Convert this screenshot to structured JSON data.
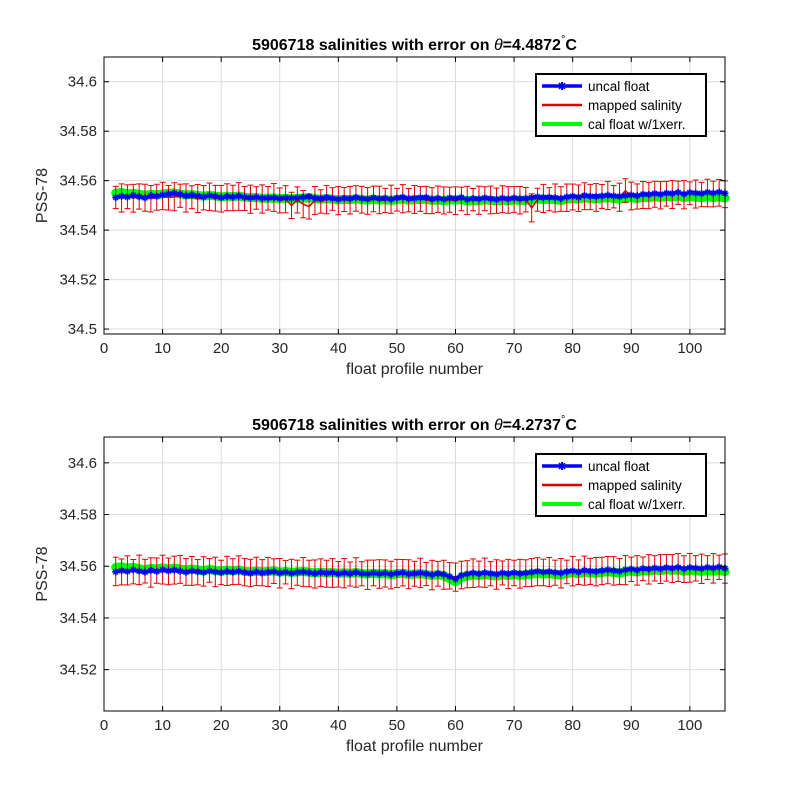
{
  "figure": {
    "background": "#ffffff"
  },
  "colors": {
    "uncal": "#0000ff",
    "mapped": "#e00000",
    "cal": "#00ff00",
    "grid": "#dcdcdc",
    "axes": "#000000"
  },
  "chart_data": [
    {
      "type": "line",
      "title_prefix": "5906718 salinities with error on ",
      "title_symbol": "θ",
      "title_value": "=4.4872",
      "title_degree": "°",
      "title_unit": "C",
      "xlabel": "float profile number",
      "ylabel": "PSS-78",
      "xlim": [
        0,
        106
      ],
      "ylim": [
        34.498,
        34.61
      ],
      "xticks": [
        0,
        10,
        20,
        30,
        40,
        50,
        60,
        70,
        80,
        90,
        100
      ],
      "yticks": [
        34.5,
        34.52,
        34.54,
        34.56,
        34.58,
        34.6
      ],
      "ytick_labels": [
        "34.5",
        "34.52",
        "34.54",
        "34.56",
        "34.58",
        "34.6"
      ],
      "grid": true,
      "legend_position": "top-right",
      "x": [
        2,
        3,
        4,
        5,
        6,
        7,
        8,
        9,
        10,
        11,
        12,
        13,
        14,
        15,
        16,
        17,
        18,
        19,
        20,
        21,
        22,
        23,
        24,
        25,
        26,
        27,
        28,
        29,
        30,
        31,
        32,
        33,
        34,
        35,
        36,
        37,
        38,
        39,
        40,
        41,
        42,
        43,
        44,
        45,
        46,
        47,
        48,
        49,
        50,
        51,
        52,
        53,
        54,
        55,
        56,
        57,
        58,
        59,
        60,
        61,
        62,
        63,
        64,
        65,
        66,
        67,
        68,
        69,
        70,
        71,
        72,
        73,
        74,
        75,
        76,
        77,
        78,
        79,
        80,
        81,
        82,
        83,
        84,
        85,
        86,
        87,
        88,
        89,
        90,
        91,
        92,
        93,
        94,
        95,
        96,
        97,
        98,
        99,
        100,
        101,
        102,
        103,
        104,
        105,
        106
      ],
      "series": [
        {
          "name": "uncal float",
          "color": "#0000ff",
          "values": [
            34.5532,
            34.5537,
            34.5534,
            34.5541,
            34.5535,
            34.553,
            34.554,
            34.5537,
            34.5542,
            34.5546,
            34.5549,
            34.5545,
            34.5539,
            34.5542,
            34.5538,
            34.5535,
            34.554,
            34.5537,
            34.5532,
            34.5536,
            34.5534,
            34.5538,
            34.5533,
            34.5531,
            34.5533,
            34.5529,
            34.553,
            34.5531,
            34.5528,
            34.5531,
            34.5529,
            34.553,
            34.5533,
            34.5535,
            34.553,
            34.5528,
            34.5532,
            34.5528,
            34.5525,
            34.5529,
            34.5527,
            34.5532,
            34.5528,
            34.5526,
            34.5531,
            34.5527,
            34.5529,
            34.5525,
            34.553,
            34.5533,
            34.5527,
            34.5529,
            34.5531,
            34.5532,
            34.5526,
            34.5529,
            34.5525,
            34.553,
            34.5528,
            34.5532,
            34.5524,
            34.5528,
            34.5526,
            34.553,
            34.5527,
            34.5524,
            34.5529,
            34.5526,
            34.553,
            34.5527,
            34.5528,
            34.5531,
            34.5534,
            34.5532,
            34.5533,
            34.5531,
            34.5528,
            34.5534,
            34.5537,
            34.5533,
            34.554,
            34.5537,
            34.5536,
            34.5538,
            34.5541,
            34.5538,
            34.5536,
            34.554,
            34.5542,
            34.5539,
            34.5545,
            34.5544,
            34.5548,
            34.5545,
            34.555,
            34.5548,
            34.5553,
            34.5546,
            34.5552,
            34.555,
            34.5548,
            34.5553,
            34.555,
            34.5554,
            34.5549
          ]
        },
        {
          "name": "mapped salinity",
          "color": "#e00000",
          "values": [
            34.5532,
            34.553,
            34.5535,
            34.5529,
            34.5536,
            34.5531,
            34.5527,
            34.5533,
            34.5538,
            34.5531,
            34.5535,
            34.5539,
            34.553,
            34.5533,
            34.5528,
            34.5531,
            34.5535,
            34.5529,
            34.5527,
            34.5533,
            34.553,
            34.5536,
            34.5528,
            34.5525,
            34.553,
            34.5526,
            34.5529,
            34.5532,
            34.552,
            34.5525,
            34.55,
            34.5522,
            34.5505,
            34.5495,
            34.552,
            34.5516,
            34.5523,
            34.5526,
            34.5519,
            34.5524,
            34.5521,
            34.5528,
            34.5523,
            34.5518,
            34.5526,
            34.5522,
            34.552,
            34.5525,
            34.5523,
            34.5527,
            34.5521,
            34.5524,
            34.5526,
            34.5522,
            34.5519,
            34.5525,
            34.552,
            34.5523,
            34.5519,
            34.5526,
            34.552,
            34.5523,
            34.5521,
            34.5527,
            34.5522,
            34.5519,
            34.5525,
            34.5522,
            34.5524,
            34.5521,
            34.5523,
            34.549,
            34.5523,
            34.5528,
            34.5525,
            34.553,
            34.5526,
            34.5531,
            34.5534,
            34.5529,
            34.5537,
            34.5534,
            34.5532,
            34.5536,
            34.554,
            34.5535,
            34.5533,
            34.556,
            34.5538,
            34.5536,
            34.5542,
            34.554,
            34.5545,
            34.5541,
            34.5547,
            34.5544,
            34.5551,
            34.5543,
            34.5549,
            34.5546,
            34.5544,
            34.555,
            34.5546,
            34.5551,
            34.5545
          ]
        },
        {
          "name": "cal float w/1xerr.",
          "color": "#00ff00",
          "values": [
            34.555,
            34.5552,
            34.5546,
            34.5549,
            34.5544,
            34.5541,
            34.5545,
            34.5543,
            34.5547,
            34.5549,
            34.555,
            34.5546,
            34.5542,
            34.5544,
            34.554,
            34.5537,
            34.5541,
            34.5538,
            34.5534,
            34.5537,
            34.5535,
            34.5538,
            34.5533,
            34.5531,
            34.5532,
            34.5528,
            34.5529,
            34.553,
            34.5527,
            34.5529,
            34.5527,
            34.5528,
            34.553,
            34.5531,
            34.5527,
            34.5525,
            34.5528,
            34.5525,
            34.5522,
            34.5525,
            34.5523,
            34.5527,
            34.5523,
            34.5521,
            34.5525,
            34.5522,
            34.5523,
            34.552,
            34.5524,
            34.5526,
            34.5521,
            34.5523,
            34.5524,
            34.5525,
            34.552,
            34.5522,
            34.5519,
            34.5523,
            34.5521,
            34.5524,
            34.5518,
            34.5521,
            34.5519,
            34.5523,
            34.552,
            34.5518,
            34.5522,
            34.5519,
            34.5522,
            34.552,
            34.5521,
            34.5523,
            34.5526,
            34.5524,
            34.5525,
            34.5523,
            34.552,
            34.5526,
            34.5528,
            34.5525,
            34.5531,
            34.5528,
            34.5527,
            34.5529,
            34.5531,
            34.5528,
            34.5526,
            34.553,
            34.5531,
            34.5528,
            34.5533,
            34.5532,
            34.5535,
            34.5532,
            34.5536,
            34.5534,
            34.5538,
            34.5532,
            34.5536,
            34.5534,
            34.5531,
            34.5535,
            34.5532,
            34.5535,
            34.553
          ]
        }
      ]
    },
    {
      "type": "line",
      "title_prefix": "5906718 salinities with error on ",
      "title_symbol": "θ",
      "title_value": "=4.2737",
      "title_degree": "°",
      "title_unit": "C",
      "xlabel": "float profile number",
      "ylabel": "PSS-78",
      "xlim": [
        0,
        106
      ],
      "ylim": [
        34.504,
        34.61
      ],
      "xticks": [
        0,
        10,
        20,
        30,
        40,
        50,
        60,
        70,
        80,
        90,
        100
      ],
      "yticks": [
        34.52,
        34.54,
        34.56,
        34.58,
        34.6
      ],
      "ytick_labels": [
        "34.52",
        "34.54",
        "34.56",
        "34.58",
        "34.6"
      ],
      "grid": true,
      "legend_position": "top-right",
      "x": [
        2,
        3,
        4,
        5,
        6,
        7,
        8,
        9,
        10,
        11,
        12,
        13,
        14,
        15,
        16,
        17,
        18,
        19,
        20,
        21,
        22,
        23,
        24,
        25,
        26,
        27,
        28,
        29,
        30,
        31,
        32,
        33,
        34,
        35,
        36,
        37,
        38,
        39,
        40,
        41,
        42,
        43,
        44,
        45,
        46,
        47,
        48,
        49,
        50,
        51,
        52,
        53,
        54,
        55,
        56,
        57,
        58,
        59,
        60,
        61,
        62,
        63,
        64,
        65,
        66,
        67,
        68,
        69,
        70,
        71,
        72,
        73,
        74,
        75,
        76,
        77,
        78,
        79,
        80,
        81,
        82,
        83,
        84,
        85,
        86,
        87,
        88,
        89,
        90,
        91,
        92,
        93,
        94,
        95,
        96,
        97,
        98,
        99,
        100,
        101,
        102,
        103,
        104,
        105,
        106
      ],
      "series": [
        {
          "name": "uncal float",
          "color": "#0000ff",
          "values": [
            34.5578,
            34.5583,
            34.558,
            34.5586,
            34.5581,
            34.5577,
            34.5584,
            34.558,
            34.5586,
            34.5582,
            34.5585,
            34.5581,
            34.5577,
            34.5582,
            34.5579,
            34.5576,
            34.5582,
            34.5578,
            34.5575,
            34.558,
            34.5577,
            34.5581,
            34.5576,
            34.5573,
            34.5578,
            34.5574,
            34.5577,
            34.5579,
            34.5574,
            34.5577,
            34.5573,
            34.5576,
            34.5578,
            34.5575,
            34.5572,
            34.5576,
            34.5573,
            34.5575,
            34.5571,
            34.5574,
            34.5572,
            34.5576,
            34.5572,
            34.557,
            34.5574,
            34.5571,
            34.5573,
            34.5569,
            34.5573,
            34.5575,
            34.557,
            34.5572,
            34.5574,
            34.5571,
            34.5567,
            34.5572,
            34.5568,
            34.556,
            34.555,
            34.5565,
            34.557,
            34.5574,
            34.5571,
            34.5575,
            34.5572,
            34.5569,
            34.5574,
            34.5571,
            34.5575,
            34.5572,
            34.5574,
            34.5577,
            34.558,
            34.5577,
            34.5579,
            34.5576,
            34.5574,
            34.5579,
            34.5582,
            34.5578,
            34.5584,
            34.5581,
            34.558,
            34.5583,
            34.5586,
            34.5583,
            34.5581,
            34.5586,
            34.5589,
            34.5585,
            34.5591,
            34.5589,
            34.5593,
            34.559,
            34.5595,
            34.5592,
            34.5596,
            34.559,
            34.5595,
            34.5593,
            34.5591,
            34.5596,
            34.5593,
            34.5597,
            34.5592
          ]
        },
        {
          "name": "mapped salinity",
          "color": "#e00000",
          "values": [
            34.558,
            34.5578,
            34.5584,
            34.5579,
            34.5586,
            34.5581,
            34.5576,
            34.5583,
            34.5587,
            34.558,
            34.5585,
            34.5588,
            34.5578,
            34.5582,
            34.5577,
            34.558,
            34.5584,
            34.5578,
            34.5576,
            34.5582,
            34.5579,
            34.5585,
            34.5577,
            34.5574,
            34.558,
            34.5575,
            34.5578,
            34.5581,
            34.5573,
            34.5577,
            34.557,
            34.5575,
            34.5578,
            34.5572,
            34.557,
            34.5575,
            34.5571,
            34.5574,
            34.5569,
            34.5573,
            34.557,
            34.5576,
            34.5571,
            34.5567,
            34.5574,
            34.557,
            34.5572,
            34.5566,
            34.5572,
            34.5575,
            34.5569,
            34.5571,
            34.5574,
            34.557,
            34.5566,
            34.5571,
            34.5567,
            34.5563,
            34.5558,
            34.5566,
            34.5569,
            34.5573,
            34.557,
            34.5575,
            34.5571,
            34.5568,
            34.5574,
            34.557,
            34.5574,
            34.5571,
            34.5573,
            34.5576,
            34.5579,
            34.5576,
            34.5578,
            34.5575,
            34.5573,
            34.5578,
            34.5581,
            34.5577,
            34.5583,
            34.558,
            34.5579,
            34.5582,
            34.5585,
            34.5582,
            34.558,
            34.5585,
            34.5588,
            34.5584,
            34.559,
            34.5588,
            34.5592,
            34.5589,
            34.5594,
            34.5591,
            34.5595,
            34.5589,
            34.5594,
            34.5592,
            34.559,
            34.5595,
            34.5592,
            34.5596,
            34.5591
          ]
        },
        {
          "name": "cal float w/1xerr.",
          "color": "#00ff00",
          "values": [
            34.5595,
            34.5598,
            34.5592,
            34.5596,
            34.559,
            34.5586,
            34.5592,
            34.5589,
            34.5594,
            34.559,
            34.5593,
            34.5589,
            34.5585,
            34.5589,
            34.5586,
            34.5583,
            34.5588,
            34.5584,
            34.5581,
            34.5585,
            34.5582,
            34.5586,
            34.5581,
            34.5578,
            34.5582,
            34.5578,
            34.558,
            34.5582,
            34.5577,
            34.558,
            34.5576,
            34.5578,
            34.558,
            34.5577,
            34.5574,
            34.5577,
            34.5574,
            34.5576,
            34.5572,
            34.5575,
            34.5572,
            34.5576,
            34.5572,
            34.557,
            34.5573,
            34.557,
            34.5572,
            34.5567,
            34.5571,
            34.5573,
            34.5568,
            34.557,
            34.5571,
            34.5568,
            34.5564,
            34.5568,
            34.5563,
            34.5552,
            34.554,
            34.5557,
            34.5563,
            34.5567,
            34.5564,
            34.5568,
            34.5565,
            34.5562,
            34.5567,
            34.5564,
            34.5568,
            34.5565,
            34.5567,
            34.557,
            34.5573,
            34.557,
            34.5572,
            34.5569,
            34.5567,
            34.5572,
            34.5575,
            34.5571,
            34.5577,
            34.5574,
            34.5573,
            34.5576,
            34.5579,
            34.5576,
            34.5574,
            34.5579,
            34.5582,
            34.5578,
            34.5584,
            34.5582,
            34.5586,
            34.5583,
            34.5587,
            34.5584,
            34.5587,
            34.5581,
            34.5585,
            34.5583,
            34.558,
            34.5584,
            34.5581,
            34.5584,
            34.558
          ]
        }
      ]
    }
  ]
}
